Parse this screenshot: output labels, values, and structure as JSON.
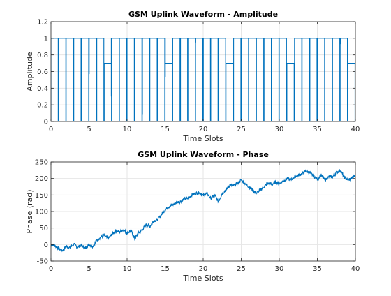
{
  "chart_data": [
    {
      "type": "line",
      "title": "GSM Uplink Waveform - Amplitude",
      "xlabel": "Time Slots",
      "ylabel": "Amplitude",
      "xlim": [
        0,
        40
      ],
      "ylim": [
        0,
        1.2
      ],
      "xticks": [
        "0",
        "5",
        "10",
        "15",
        "20",
        "25",
        "30",
        "35",
        "40"
      ],
      "yticks": [
        "0",
        "0.2",
        "0.4",
        "0.6",
        "0.8",
        "1",
        "1.2"
      ],
      "grid": true,
      "color": "#0072BD",
      "series": [
        {
          "segments": [
            [
              [
                0.0,
                1.0
              ],
              [
                0.95,
                1.0
              ]
            ],
            [
              [
                1.0,
                1.0
              ],
              [
                1.95,
                1.0
              ]
            ],
            [
              [
                2.0,
                1.0
              ],
              [
                2.95,
                1.0
              ]
            ],
            [
              [
                3.0,
                1.0
              ],
              [
                3.95,
                1.0
              ]
            ],
            [
              [
                4.0,
                1.0
              ],
              [
                4.95,
                1.0
              ]
            ],
            [
              [
                5.0,
                1.0
              ],
              [
                5.95,
                1.0
              ]
            ],
            [
              [
                6.0,
                1.0
              ],
              [
                6.95,
                1.0
              ]
            ],
            [
              [
                7.0,
                0.7
              ],
              [
                7.95,
                0.7
              ]
            ],
            [
              [
                8.0,
                1.0
              ],
              [
                8.95,
                1.0
              ]
            ],
            [
              [
                9.0,
                1.0
              ],
              [
                9.95,
                1.0
              ]
            ],
            [
              [
                10.0,
                1.0
              ],
              [
                10.95,
                1.0
              ]
            ],
            [
              [
                11.0,
                1.0
              ],
              [
                11.95,
                1.0
              ]
            ],
            [
              [
                12.0,
                1.0
              ],
              [
                12.95,
                1.0
              ]
            ],
            [
              [
                13.0,
                1.0
              ],
              [
                13.95,
                1.0
              ]
            ],
            [
              [
                14.0,
                1.0
              ],
              [
                14.95,
                1.0
              ]
            ],
            [
              [
                15.0,
                0.7
              ],
              [
                15.95,
                0.7
              ]
            ],
            [
              [
                16.0,
                1.0
              ],
              [
                16.95,
                1.0
              ]
            ],
            [
              [
                17.0,
                1.0
              ],
              [
                17.95,
                1.0
              ]
            ],
            [
              [
                18.0,
                1.0
              ],
              [
                18.95,
                1.0
              ]
            ],
            [
              [
                19.0,
                1.0
              ],
              [
                19.95,
                1.0
              ]
            ],
            [
              [
                20.0,
                1.0
              ],
              [
                20.95,
                1.0
              ]
            ],
            [
              [
                21.0,
                1.0
              ],
              [
                21.95,
                1.0
              ]
            ],
            [
              [
                22.0,
                1.0
              ],
              [
                22.95,
                1.0
              ]
            ],
            [
              [
                23.0,
                0.7
              ],
              [
                23.95,
                0.7
              ]
            ],
            [
              [
                24.0,
                1.0
              ],
              [
                24.95,
                1.0
              ]
            ],
            [
              [
                25.0,
                1.0
              ],
              [
                25.95,
                1.0
              ]
            ],
            [
              [
                26.0,
                1.0
              ],
              [
                26.95,
                1.0
              ]
            ],
            [
              [
                27.0,
                1.0
              ],
              [
                27.95,
                1.0
              ]
            ],
            [
              [
                28.0,
                1.0
              ],
              [
                28.95,
                1.0
              ]
            ],
            [
              [
                29.0,
                1.0
              ],
              [
                29.95,
                1.0
              ]
            ],
            [
              [
                30.0,
                1.0
              ],
              [
                30.95,
                1.0
              ]
            ],
            [
              [
                31.0,
                0.7
              ],
              [
                31.95,
                0.7
              ]
            ],
            [
              [
                32.0,
                1.0
              ],
              [
                32.95,
                1.0
              ]
            ],
            [
              [
                33.0,
                1.0
              ],
              [
                33.95,
                1.0
              ]
            ],
            [
              [
                34.0,
                1.0
              ],
              [
                34.95,
                1.0
              ]
            ],
            [
              [
                35.0,
                1.0
              ],
              [
                35.95,
                1.0
              ]
            ],
            [
              [
                36.0,
                1.0
              ],
              [
                36.95,
                1.0
              ]
            ],
            [
              [
                37.0,
                1.0
              ],
              [
                37.95,
                1.0
              ]
            ],
            [
              [
                38.0,
                1.0
              ],
              [
                38.95,
                1.0
              ]
            ],
            [
              [
                39.0,
                0.7
              ],
              [
                39.95,
                0.7
              ]
            ]
          ],
          "dips": [
            [
              5.0,
              0.57
            ],
            [
              6.0,
              0.0
            ],
            [
              7.95,
              0.3
            ],
            [
              12.0,
              0.08
            ],
            [
              14.0,
              0.38
            ],
            [
              15.0,
              0.53
            ],
            [
              17.0,
              0.0
            ],
            [
              19.0,
              0.95
            ],
            [
              20.0,
              0.0
            ],
            [
              22.0,
              0.75
            ],
            [
              25.0,
              0.57
            ],
            [
              29.0,
              0.45
            ],
            [
              34.0,
              0.0
            ],
            [
              38.0,
              0.93
            ],
            [
              39.0,
              0.0
            ]
          ]
        }
      ]
    },
    {
      "type": "line",
      "title": "GSM Uplink Waveform - Phase",
      "xlabel": "Time Slots",
      "ylabel": "Phase (rad)",
      "xlim": [
        0,
        40
      ],
      "ylim": [
        -50,
        250
      ],
      "xticks": [
        "0",
        "5",
        "10",
        "15",
        "20",
        "25",
        "30",
        "35",
        "40"
      ],
      "yticks": [
        "-50",
        "0",
        "50",
        "100",
        "150",
        "200",
        "250"
      ],
      "grid": true,
      "color": "#0072BD",
      "series": [
        {
          "x": [
            0,
            0.5,
            1,
            1.5,
            2,
            2.5,
            3,
            3.5,
            4,
            4.5,
            5,
            5.5,
            6,
            6.5,
            7,
            7.5,
            8,
            8.5,
            9,
            9.5,
            10,
            10.5,
            11,
            11.5,
            12,
            12.5,
            13,
            13.5,
            14,
            14.5,
            15,
            15.5,
            16,
            16.5,
            17,
            17.5,
            18,
            18.5,
            19,
            19.5,
            20,
            20.5,
            21,
            21.5,
            22,
            22.5,
            23,
            23.5,
            24,
            24.5,
            25,
            25.5,
            26,
            26.5,
            27,
            27.5,
            28,
            28.5,
            29,
            29.5,
            30,
            30.5,
            31,
            31.5,
            32,
            32.5,
            33,
            33.5,
            34,
            34.5,
            35,
            35.5,
            36,
            36.5,
            37,
            37.5,
            38,
            38.5,
            39,
            39.5,
            40
          ],
          "y": [
            0,
            -3,
            -12,
            -18,
            -5,
            -10,
            2,
            -8,
            -2,
            -12,
            0,
            -5,
            12,
            22,
            28,
            18,
            30,
            42,
            38,
            45,
            35,
            42,
            18,
            35,
            45,
            60,
            55,
            72,
            75,
            90,
            105,
            115,
            120,
            128,
            130,
            138,
            140,
            150,
            155,
            158,
            148,
            155,
            140,
            150,
            130,
            155,
            165,
            180,
            178,
            185,
            195,
            185,
            175,
            165,
            155,
            165,
            175,
            185,
            182,
            188,
            185,
            192,
            200,
            195,
            205,
            210,
            215,
            222,
            218,
            208,
            198,
            210,
            195,
            205,
            205,
            218,
            225,
            205,
            195,
            200,
            210
          ]
        }
      ]
    }
  ]
}
